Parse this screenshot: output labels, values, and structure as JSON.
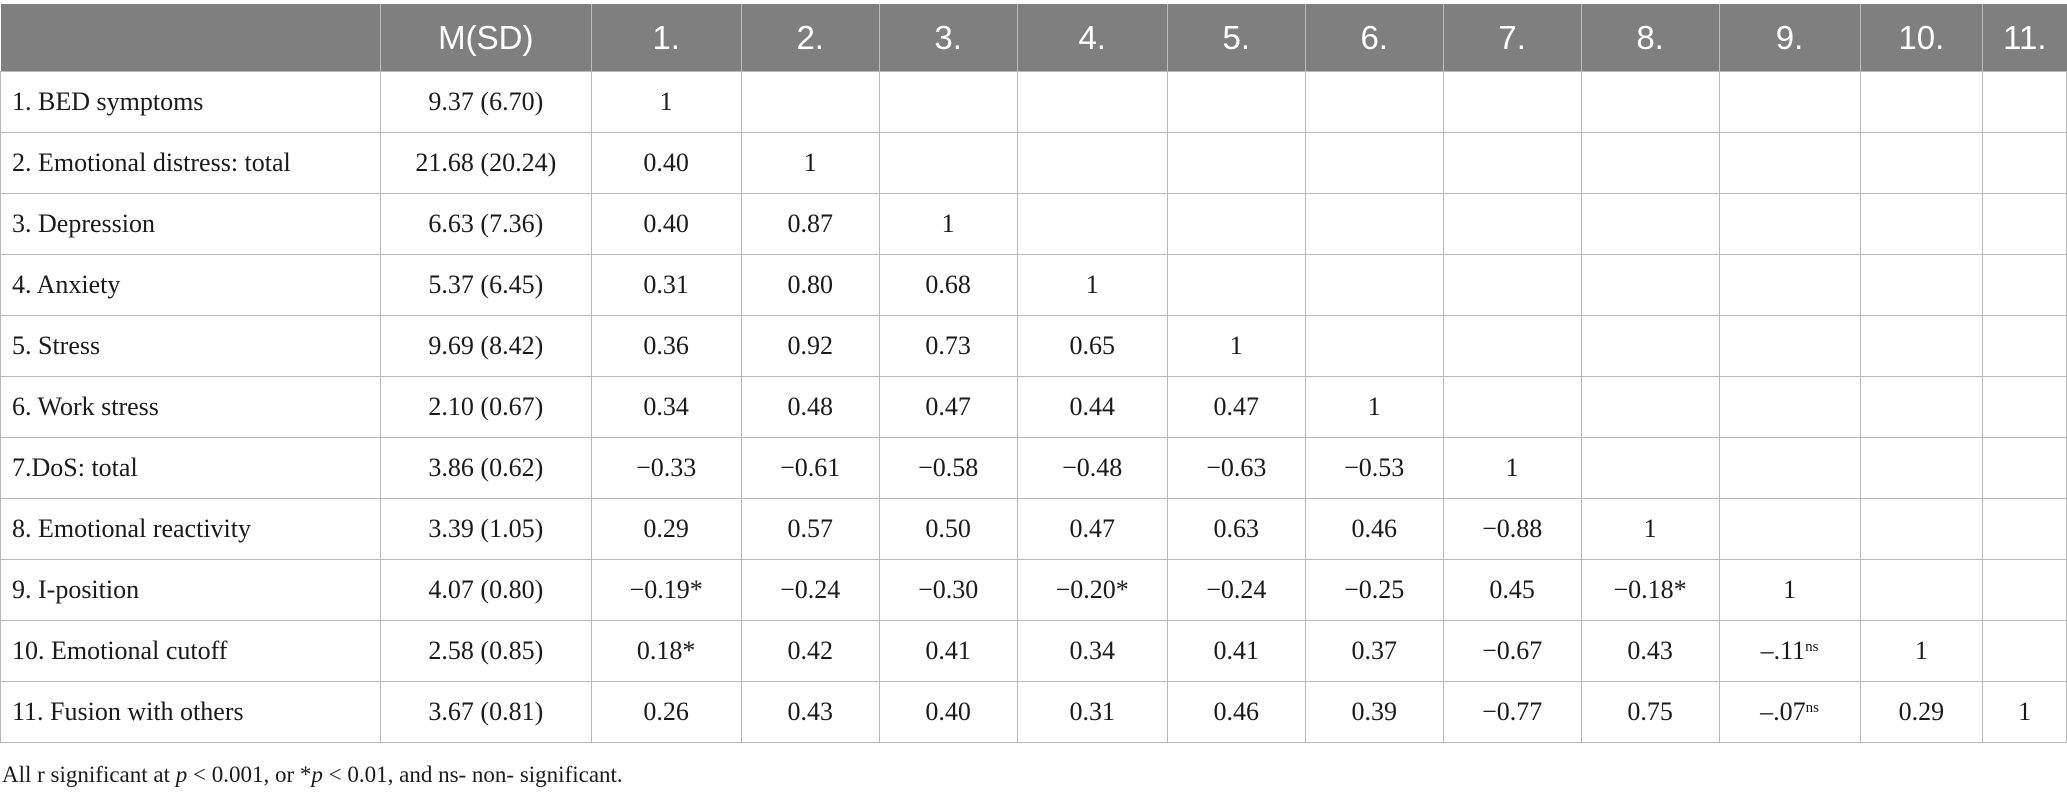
{
  "table": {
    "header": [
      "",
      "M(SD)",
      "1.",
      "2.",
      "3.",
      "4.",
      "5.",
      "6.",
      "7.",
      "8.",
      "9.",
      "10.",
      "11."
    ],
    "rows": [
      {
        "label": "1. BED symptoms",
        "msd": "9.37 (6.70)",
        "cells": [
          "1",
          "",
          "",
          "",
          "",
          "",
          "",
          "",
          "",
          "",
          ""
        ]
      },
      {
        "label": "2. Emotional distress: total",
        "msd": "21.68 (20.24)",
        "cells": [
          "0.40",
          "1",
          "",
          "",
          "",
          "",
          "",
          "",
          "",
          "",
          ""
        ]
      },
      {
        "label": "3. Depression",
        "msd": "6.63 (7.36)",
        "cells": [
          "0.40",
          "0.87",
          "1",
          "",
          "",
          "",
          "",
          "",
          "",
          "",
          ""
        ]
      },
      {
        "label": "4. Anxiety",
        "msd": "5.37 (6.45)",
        "cells": [
          "0.31",
          "0.80",
          "0.68",
          "1",
          "",
          "",
          "",
          "",
          "",
          "",
          ""
        ]
      },
      {
        "label": "5. Stress",
        "msd": "9.69 (8.42)",
        "cells": [
          "0.36",
          "0.92",
          "0.73",
          "0.65",
          "1",
          "",
          "",
          "",
          "",
          "",
          ""
        ]
      },
      {
        "label": "6. Work stress",
        "msd": "2.10 (0.67)",
        "cells": [
          "0.34",
          "0.48",
          "0.47",
          "0.44",
          "0.47",
          "1",
          "",
          "",
          "",
          "",
          ""
        ]
      },
      {
        "label": "7.DoS: total",
        "msd": "3.86 (0.62)",
        "cells": [
          "−0.33",
          "−0.61",
          "−0.58",
          "−0.48",
          "−0.63",
          "−0.53",
          "1",
          "",
          "",
          "",
          ""
        ]
      },
      {
        "label": "8. Emotional reactivity",
        "msd": "3.39 (1.05)",
        "cells": [
          "0.29",
          "0.57",
          "0.50",
          "0.47",
          "0.63",
          "0.46",
          "−0.88",
          "1",
          "",
          "",
          ""
        ]
      },
      {
        "label": "9. I-position",
        "msd": "4.07 (0.80)",
        "cells": [
          "−0.19*",
          "−0.24",
          "−0.30",
          "−0.20*",
          "−0.24",
          "−0.25",
          "0.45",
          "−0.18*",
          "1",
          "",
          ""
        ]
      },
      {
        "label": "10. Emotional cutoff",
        "msd": "2.58 (0.85)",
        "cells": [
          "0.18*",
          "0.42",
          "0.41",
          "0.34",
          "0.41",
          "0.37",
          "−0.67",
          "0.43",
          "–.11",
          "1",
          ""
        ]
      },
      {
        "label": "11. Fusion with others",
        "msd": "3.67 (0.81)",
        "cells": [
          "0.26",
          "0.43",
          "0.40",
          "0.31",
          "0.46",
          "0.39",
          "−0.77",
          "0.75",
          "–.07",
          "0.29",
          "1"
        ]
      }
    ],
    "ns_mark": "ns"
  },
  "footnote": {
    "part1": "All r significant at ",
    "p1": "p",
    "part2": " < 0.001, or *",
    "p2": "p",
    "part3": " < 0.01, and ns- non- significant."
  },
  "colors": {
    "header_bg": "#7f7f7f",
    "header_text": "#ffffff",
    "grid": "#b8b8b8"
  }
}
